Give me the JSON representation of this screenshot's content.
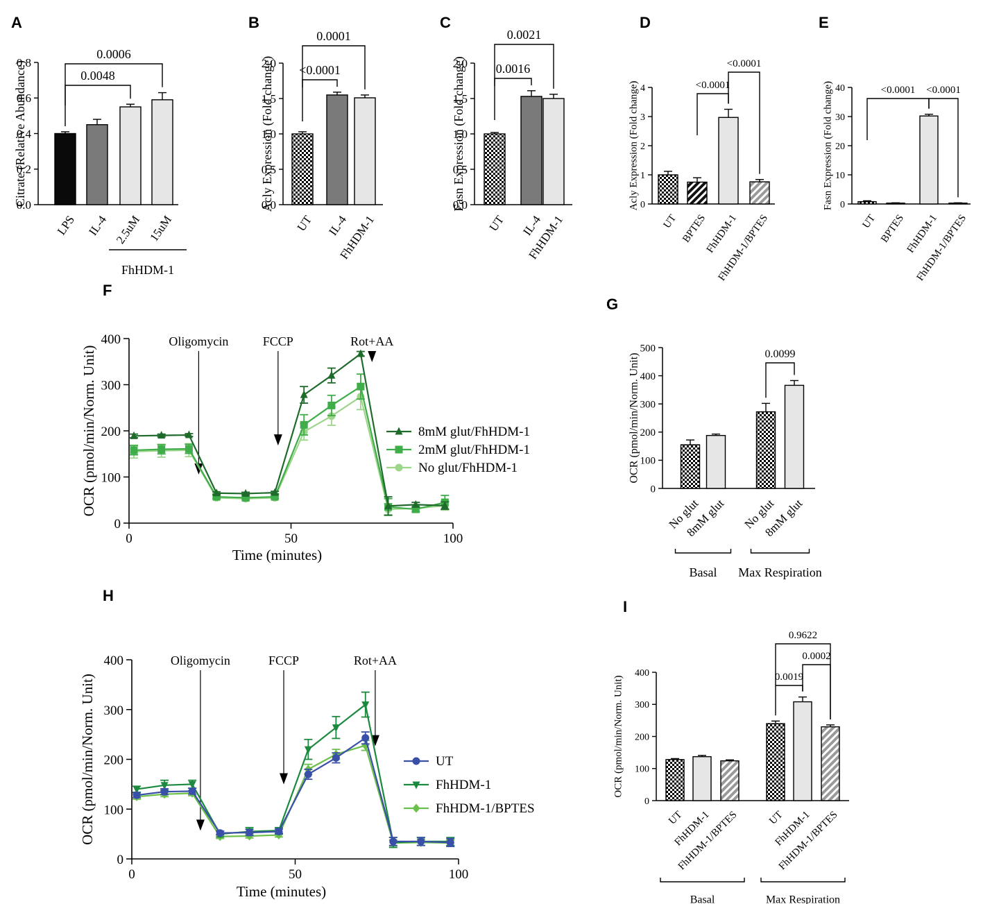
{
  "chart_data": [
    {
      "id": "A",
      "panel": "A",
      "type": "bar",
      "ylabel": "Citrate (Relative Abundance)",
      "ylim": [
        0,
        0.8
      ],
      "yticks": [
        0,
        0.2,
        0.4,
        0.6,
        0.8
      ],
      "ytick_labels": [
        "0.0",
        "0.2",
        "0.4",
        "0.6",
        "0.8"
      ],
      "categories": [
        "LPS",
        "IL-4",
        "2.5uM",
        "15uM"
      ],
      "values": [
        0.4,
        0.45,
        0.55,
        0.59
      ],
      "errors": [
        0.01,
        0.03,
        0.015,
        0.04
      ],
      "fills": [
        "black",
        "darkgray",
        "lightgray",
        "lightgray"
      ],
      "brackets": [
        {
          "from": 0,
          "to": 2,
          "label": "0.0048"
        },
        {
          "from": 0,
          "to": 3,
          "label": "0.0006"
        }
      ],
      "groups": [
        {
          "label": "FhHDM-1",
          "from": 2,
          "to": 3
        }
      ]
    },
    {
      "id": "B",
      "panel": "B",
      "type": "bar",
      "ylabel": "Acly Expression (Fold change)",
      "ylim": [
        0,
        2.0
      ],
      "yticks": [
        0,
        0.5,
        1.0,
        1.5,
        2.0
      ],
      "ytick_labels": [
        "0.0",
        "0.5",
        "1.0",
        "1.5",
        "2.0"
      ],
      "categories": [
        "UT",
        "IL-4",
        "FhHDM-1"
      ],
      "values": [
        1.0,
        1.55,
        1.51
      ],
      "errors": [
        0.03,
        0.04,
        0.04
      ],
      "fills": [
        "checker",
        "darkgray",
        "lightgray"
      ],
      "brackets": [
        {
          "from": 0,
          "to": 1,
          "label": "<0.0001"
        },
        {
          "from": 0,
          "to": 2,
          "label": "0.0001"
        }
      ]
    },
    {
      "id": "C",
      "panel": "C",
      "type": "bar",
      "ylabel": "Fasn Expression (Fold change)",
      "ylim": [
        0,
        2.0
      ],
      "yticks": [
        0,
        0.5,
        1.0,
        1.5,
        2.0
      ],
      "ytick_labels": [
        "0.0",
        "0.5",
        "1.0",
        "1.5",
        "2.0"
      ],
      "categories": [
        "UT",
        "IL-4",
        "FhHDM-1"
      ],
      "values": [
        1.0,
        1.53,
        1.5
      ],
      "errors": [
        0.02,
        0.08,
        0.06
      ],
      "fills": [
        "checker",
        "darkgray",
        "lightgray"
      ],
      "brackets": [
        {
          "from": 0,
          "to": 1,
          "label": "0.0016"
        },
        {
          "from": 0,
          "to": 2,
          "label": "0.0021"
        }
      ]
    },
    {
      "id": "D",
      "panel": "D",
      "type": "bar",
      "ylabel": "Acly Expression (Fold change)",
      "ylim": [
        0,
        4
      ],
      "yticks": [
        0,
        1,
        2,
        3,
        4
      ],
      "ytick_labels": [
        "0",
        "1",
        "2",
        "3",
        "4"
      ],
      "categories": [
        "UT",
        "BPTES",
        "FhHDM-1",
        "FhHDM-1/BPTES"
      ],
      "values": [
        1.0,
        0.75,
        2.97,
        0.76
      ],
      "errors": [
        0.12,
        0.15,
        0.28,
        0.08
      ],
      "fills": [
        "checker",
        "darkstripe",
        "lightgray",
        "graystripe"
      ],
      "brackets": [
        {
          "from": 1,
          "to": 2,
          "label": "<0.0001"
        },
        {
          "from": 2,
          "to": 3,
          "label": "<0.0001"
        }
      ]
    },
    {
      "id": "E",
      "panel": "E",
      "type": "bar",
      "ylabel": "Fasn Expression (Fold change)",
      "ylim": [
        0,
        40
      ],
      "yticks": [
        0,
        10,
        20,
        30,
        40
      ],
      "ytick_labels": [
        "0",
        "10",
        "20",
        "30",
        "40"
      ],
      "categories": [
        "UT",
        "BPTES",
        "FhHDM-1",
        "FhHDM-1/BPTES"
      ],
      "values": [
        0.8,
        0.3,
        30.2,
        0.3
      ],
      "errors": [
        0.3,
        0.1,
        0.6,
        0.1
      ],
      "fills": [
        "checker",
        "darkstripe",
        "lightgray",
        "graystripe"
      ],
      "brackets": [
        {
          "from": 0,
          "to": 2,
          "label": "<0.0001"
        },
        {
          "from": 2,
          "to": 3,
          "label": "<0.0001"
        }
      ]
    },
    {
      "id": "F",
      "panel": "F",
      "type": "line",
      "ylabel": "OCR (pmol/min/Norm. Unit)",
      "xlabel": "Time (minutes)",
      "xlim": [
        0,
        100
      ],
      "ylim": [
        0,
        400
      ],
      "xticks": [
        0,
        50,
        100
      ],
      "yticks": [
        0,
        100,
        200,
        300,
        400
      ],
      "x": [
        1.5,
        10,
        18.5,
        27,
        36,
        45,
        54,
        62.5,
        71.5,
        80,
        88.5,
        97.5
      ],
      "series": [
        {
          "name": "8mM glut/FhHDM-1",
          "color": "#1e6b2c",
          "marker": "triangle-up",
          "values": [
            189,
            190,
            191,
            65,
            64,
            66,
            278,
            320,
            367,
            37,
            40,
            38
          ],
          "errors": [
            4,
            3,
            3,
            3,
            3,
            3,
            18,
            16,
            5,
            20,
            5,
            8
          ]
        },
        {
          "name": "2mM glut/FhHDM-1",
          "color": "#3fad49",
          "marker": "square",
          "values": [
            158,
            160,
            161,
            57,
            55,
            57,
            213,
            255,
            296,
            35,
            30,
            45
          ],
          "errors": [
            10,
            10,
            10,
            3,
            3,
            3,
            22,
            22,
            27,
            18,
            5,
            15
          ]
        },
        {
          "name": "No glut/FhHDM-1",
          "color": "#9dd58b",
          "marker": "circle",
          "values": [
            155,
            157,
            158,
            55,
            53,
            55,
            198,
            232,
            274,
            30,
            32,
            38
          ],
          "errors": [
            14,
            14,
            14,
            3,
            3,
            3,
            18,
            20,
            28,
            12,
            8,
            10
          ]
        }
      ],
      "annotations": [
        {
          "label": "Oligomycin",
          "x": 21.5
        },
        {
          "label": "FCCP",
          "x": 46
        },
        {
          "label": "Rot+AA",
          "x": 75
        }
      ]
    },
    {
      "id": "G",
      "panel": "G",
      "type": "bar",
      "ylabel": "OCR (pmol/min/Norm. Unit)",
      "ylim": [
        0,
        500
      ],
      "yticks": [
        0,
        100,
        200,
        300,
        400,
        500
      ],
      "ytick_labels": [
        "0",
        "100",
        "200",
        "300",
        "400",
        "500"
      ],
      "categories": [
        "No glut",
        "8mM glut",
        "No glut",
        "8mM glut"
      ],
      "values": [
        155,
        188,
        272,
        366
      ],
      "errors": [
        17,
        5,
        30,
        17
      ],
      "fills": [
        "checker",
        "lightgray",
        "checker",
        "lightgray"
      ],
      "brackets": [
        {
          "from": 2,
          "to": 3,
          "label": "0.0099"
        }
      ],
      "groups": [
        {
          "label": "Basal",
          "from": 0,
          "to": 1
        },
        {
          "label": "Max Respiration",
          "from": 2,
          "to": 3
        }
      ]
    },
    {
      "id": "H",
      "panel": "H",
      "type": "line",
      "ylabel": "OCR (pmol/min/Norm. Unit)",
      "xlabel": "Time (minutes)",
      "xlim": [
        0,
        100
      ],
      "ylim": [
        0,
        400
      ],
      "xticks": [
        0,
        50,
        100
      ],
      "yticks": [
        0,
        100,
        200,
        300,
        400
      ],
      "x": [
        1.5,
        10,
        18.5,
        27,
        36,
        45,
        54,
        62.5,
        71.5,
        80,
        88.5,
        97.5
      ],
      "series": [
        {
          "name": "UT",
          "color": "#3a4fa8",
          "marker": "circle",
          "values": [
            128,
            135,
            136,
            52,
            53,
            55,
            170,
            203,
            243,
            35,
            35,
            33
          ],
          "errors": [
            5,
            6,
            6,
            4,
            6,
            5,
            10,
            10,
            12,
            8,
            8,
            8
          ]
        },
        {
          "name": "FhHDM-1",
          "color": "#1b8a3e",
          "marker": "triangle-down",
          "values": [
            140,
            148,
            150,
            50,
            55,
            57,
            220,
            264,
            310,
            33,
            35,
            35
          ],
          "errors": [
            6,
            10,
            8,
            6,
            8,
            6,
            20,
            22,
            25,
            10,
            8,
            8
          ]
        },
        {
          "name": "FhHDM-1/BPTES",
          "color": "#6cc04a",
          "marker": "diamond",
          "values": [
            125,
            130,
            132,
            45,
            46,
            48,
            180,
            210,
            228,
            32,
            33,
            32
          ],
          "errors": [
            5,
            5,
            5,
            4,
            4,
            4,
            10,
            10,
            10,
            6,
            6,
            6
          ]
        }
      ],
      "annotations": [
        {
          "label": "Oligomycin",
          "x": 21
        },
        {
          "label": "FCCP",
          "x": 46.5
        },
        {
          "label": "Rot+AA",
          "x": 74.5
        }
      ]
    },
    {
      "id": "I",
      "panel": "I",
      "type": "bar",
      "ylabel": "OCR (pmol/min/Norm. Unit)",
      "ylim": [
        0,
        400
      ],
      "yticks": [
        0,
        100,
        200,
        300,
        400
      ],
      "ytick_labels": [
        "0",
        "100",
        "200",
        "300",
        "400"
      ],
      "categories": [
        "UT",
        "FhHDM-1",
        "FhHDM-1/BPTES",
        "UT",
        "FhHDM-1",
        "FhHDM-1/BPTES"
      ],
      "values": [
        128,
        137,
        124,
        240,
        308,
        230
      ],
      "errors": [
        3,
        4,
        3,
        8,
        15,
        6
      ],
      "fills": [
        "checker",
        "lightgray",
        "graystripe",
        "checker",
        "lightgray",
        "graystripe"
      ],
      "brackets": [
        {
          "from": 3,
          "to": 4,
          "label": "0.0019"
        },
        {
          "from": 4,
          "to": 5,
          "label": "0.0002"
        },
        {
          "from": 3,
          "to": 5,
          "label": "0.9622"
        }
      ],
      "groups": [
        {
          "label": "Basal",
          "from": 0,
          "to": 2
        },
        {
          "label": "Max Respiration",
          "from": 3,
          "to": 5
        }
      ]
    }
  ]
}
